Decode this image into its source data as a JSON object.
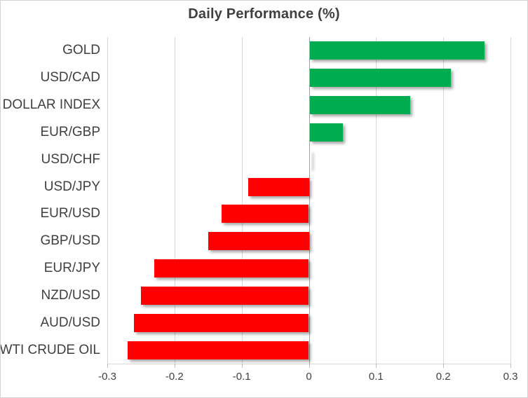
{
  "chart": {
    "title": "Daily Performance (%)"
  },
  "colors": {
    "positive_bar": "#00ac50",
    "negative_bar": "#fe0000",
    "gridline": "#d9d9d9",
    "zero_axis": "#a3a3a3",
    "tick_mark": "#bfbfbf",
    "text": "#3f3f3f",
    "border": "#d3d3d3"
  },
  "chart_data": {
    "type": "bar",
    "orientation": "horizontal",
    "title": "Daily Performance (%)",
    "categories": [
      "GOLD",
      "USD/CAD",
      "DOLLAR INDEX",
      "EUR/GBP",
      "USD/CHF",
      "USD/JPY",
      "EUR/USD",
      "GBP/USD",
      "EUR/JPY",
      "NZD/USD",
      "AUD/USD",
      "WTI CRUDE OIL"
    ],
    "values": [
      0.26,
      0.21,
      0.15,
      0.05,
      0.0,
      -0.09,
      -0.13,
      -0.15,
      -0.23,
      -0.25,
      -0.26,
      -0.27
    ],
    "xlim": [
      -0.3,
      0.3
    ],
    "x_ticks": [
      -0.3,
      -0.2,
      -0.1,
      0,
      0.1,
      0.2,
      0.3
    ],
    "x_tick_labels": [
      "-0.3",
      "-0.2",
      "-0.1",
      "0",
      "0.1",
      "0.2",
      "0.3"
    ],
    "grid": "vertical",
    "legend": "none",
    "bar_color_rule": "green if value >= 0 else red"
  }
}
